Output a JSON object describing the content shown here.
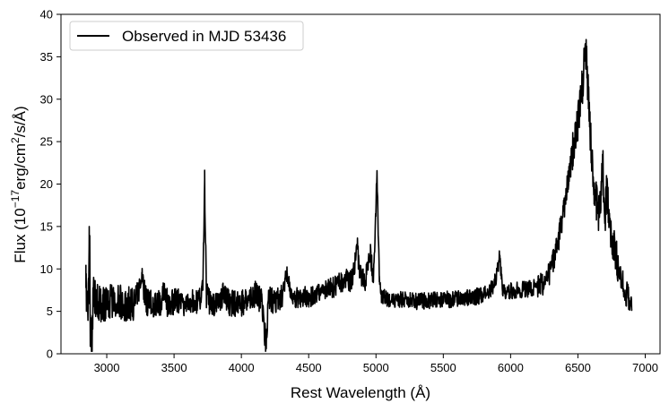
{
  "chart_data": {
    "type": "line",
    "title": "",
    "xlabel": "Rest Wavelength (Å)",
    "ylabel_parts": {
      "prefix": "Flux (10",
      "exp1": "−17",
      "mid": "erg/cm",
      "exp2": "2",
      "suffix": "/s/Å)"
    },
    "xlim": [
      2660,
      7110
    ],
    "ylim": [
      0,
      40
    ],
    "xticks": [
      3000,
      3500,
      4000,
      4500,
      5000,
      5500,
      6000,
      6500,
      7000
    ],
    "xtick_labels": [
      "3000",
      "3500",
      "4000",
      "4500",
      "5000",
      "5500",
      "6000",
      "6500",
      "7000"
    ],
    "yticks": [
      0,
      5,
      10,
      15,
      20,
      25,
      30,
      35,
      40
    ],
    "ytick_labels": [
      "0",
      "5",
      "10",
      "15",
      "20",
      "25",
      "30",
      "35",
      "40"
    ],
    "grid": false,
    "legend_position": "top-left",
    "series": [
      {
        "name": "Observed in MJD 53436",
        "color": "#000000",
        "x_range": [
          2845,
          6905
        ],
        "points": [
          [
            2845,
            7.8
          ],
          [
            2855,
            6.4
          ],
          [
            2865,
            5.9
          ],
          [
            2870,
            15.0
          ],
          [
            2878,
            4.6
          ],
          [
            2888,
            0.3
          ],
          [
            2900,
            7.2
          ],
          [
            2920,
            6.1
          ],
          [
            2960,
            5.8
          ],
          [
            3000,
            6.2
          ],
          [
            3050,
            6.0
          ],
          [
            3100,
            6.1
          ],
          [
            3150,
            5.9
          ],
          [
            3200,
            6.0
          ],
          [
            3262,
            8.6
          ],
          [
            3300,
            6.0
          ],
          [
            3350,
            5.9
          ],
          [
            3400,
            6.1
          ],
          [
            3426,
            7.2
          ],
          [
            3450,
            6.0
          ],
          [
            3500,
            6.2
          ],
          [
            3550,
            6.0
          ],
          [
            3600,
            6.1
          ],
          [
            3650,
            6.3
          ],
          [
            3700,
            6.2
          ],
          [
            3714,
            7.5
          ],
          [
            3727,
            20.5
          ],
          [
            3740,
            7.0
          ],
          [
            3760,
            6.2
          ],
          [
            3800,
            6.0
          ],
          [
            3850,
            6.2
          ],
          [
            3869,
            7.8
          ],
          [
            3890,
            6.2
          ],
          [
            3950,
            5.8
          ],
          [
            4000,
            5.9
          ],
          [
            4050,
            6.0
          ],
          [
            4102,
            7.0
          ],
          [
            4150,
            6.2
          ],
          [
            4185,
            0.6
          ],
          [
            4200,
            6.3
          ],
          [
            4250,
            6.4
          ],
          [
            4300,
            6.5
          ],
          [
            4341,
            9.5
          ],
          [
            4363,
            7.5
          ],
          [
            4400,
            6.5
          ],
          [
            4450,
            6.6
          ],
          [
            4500,
            6.7
          ],
          [
            4550,
            6.9
          ],
          [
            4600,
            7.2
          ],
          [
            4650,
            7.6
          ],
          [
            4700,
            8.0
          ],
          [
            4740,
            8.3
          ],
          [
            4780,
            8.7
          ],
          [
            4820,
            8.6
          ],
          [
            4861,
            12.6
          ],
          [
            4880,
            9.3
          ],
          [
            4920,
            8.6
          ],
          [
            4959,
            11.8
          ],
          [
            4980,
            8.4
          ],
          [
            5007,
            21.0
          ],
          [
            5025,
            8.5
          ],
          [
            5040,
            7.0
          ],
          [
            5060,
            6.6
          ],
          [
            5100,
            6.5
          ],
          [
            5200,
            6.4
          ],
          [
            5300,
            6.2
          ],
          [
            5400,
            6.3
          ],
          [
            5500,
            6.4
          ],
          [
            5600,
            6.4
          ],
          [
            5700,
            6.6
          ],
          [
            5800,
            6.9
          ],
          [
            5876,
            7.8
          ],
          [
            5920,
            11.6
          ],
          [
            5940,
            7.3
          ],
          [
            6000,
            7.4
          ],
          [
            6100,
            7.6
          ],
          [
            6200,
            7.9
          ],
          [
            6250,
            8.5
          ],
          [
            6300,
            10.0
          ],
          [
            6350,
            13.0
          ],
          [
            6400,
            17.5
          ],
          [
            6450,
            22.5
          ],
          [
            6500,
            27.5
          ],
          [
            6530,
            31.0
          ],
          [
            6550,
            34.5
          ],
          [
            6563,
            35.8
          ],
          [
            6575,
            31.0
          ],
          [
            6590,
            26.5
          ],
          [
            6620,
            20.0
          ],
          [
            6650,
            16.5
          ],
          [
            6670,
            17.0
          ],
          [
            6683,
            23.5
          ],
          [
            6700,
            16.0
          ],
          [
            6716,
            19.5
          ],
          [
            6731,
            17.0
          ],
          [
            6750,
            13.5
          ],
          [
            6800,
            10.0
          ],
          [
            6850,
            7.5
          ],
          [
            6880,
            6.6
          ],
          [
            6905,
            6.3
          ]
        ]
      }
    ]
  }
}
